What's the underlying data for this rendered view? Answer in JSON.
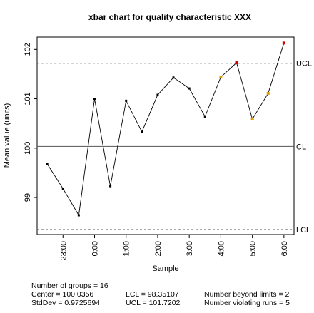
{
  "chart_data": {
    "type": "line",
    "title": "xbar chart for quality characteristic XXX",
    "xlabel": "Sample",
    "ylabel": "Mean value (units)",
    "ylim": [
      98.25,
      102.25
    ],
    "yticks": [
      99,
      100,
      101,
      102
    ],
    "x": [
      1,
      2,
      3,
      4,
      5,
      6,
      7,
      8,
      9,
      10,
      11,
      12,
      13,
      14,
      15,
      16
    ],
    "xtick_positions": [
      2,
      4,
      6,
      8,
      10,
      12,
      14,
      16
    ],
    "xtick_labels": [
      "23:00",
      "0:00",
      "1:00",
      "2:00",
      "3:00",
      "4:00",
      "5:00",
      "6:00"
    ],
    "values": [
      99.68,
      99.18,
      98.64,
      101.0,
      99.23,
      100.96,
      100.33,
      101.08,
      101.43,
      101.21,
      100.64,
      101.44,
      101.73,
      100.59,
      101.11,
      102.13
    ],
    "point_colors": [
      "#000000",
      "#000000",
      "#000000",
      "#000000",
      "#000000",
      "#000000",
      "#000000",
      "#000000",
      "#000000",
      "#000000",
      "#000000",
      "#e0a000",
      "#d00000",
      "#e0a000",
      "#e0a000",
      "#d00000"
    ],
    "center": 100.0356,
    "lcl": 98.35107,
    "ucl": 101.7202,
    "limit_labels": {
      "ucl": "UCL",
      "cl": "CL",
      "lcl": "LCL"
    },
    "grid": false
  },
  "stats": {
    "groups": "Number of groups = 16",
    "center": "Center = 100.0356",
    "stddev": "StdDev = 0.9725694",
    "lcl": "LCL = 98.35107",
    "ucl": "UCL = 101.7202",
    "beyond": "Number beyond limits = 2",
    "violating": "Number violating runs = 5"
  }
}
